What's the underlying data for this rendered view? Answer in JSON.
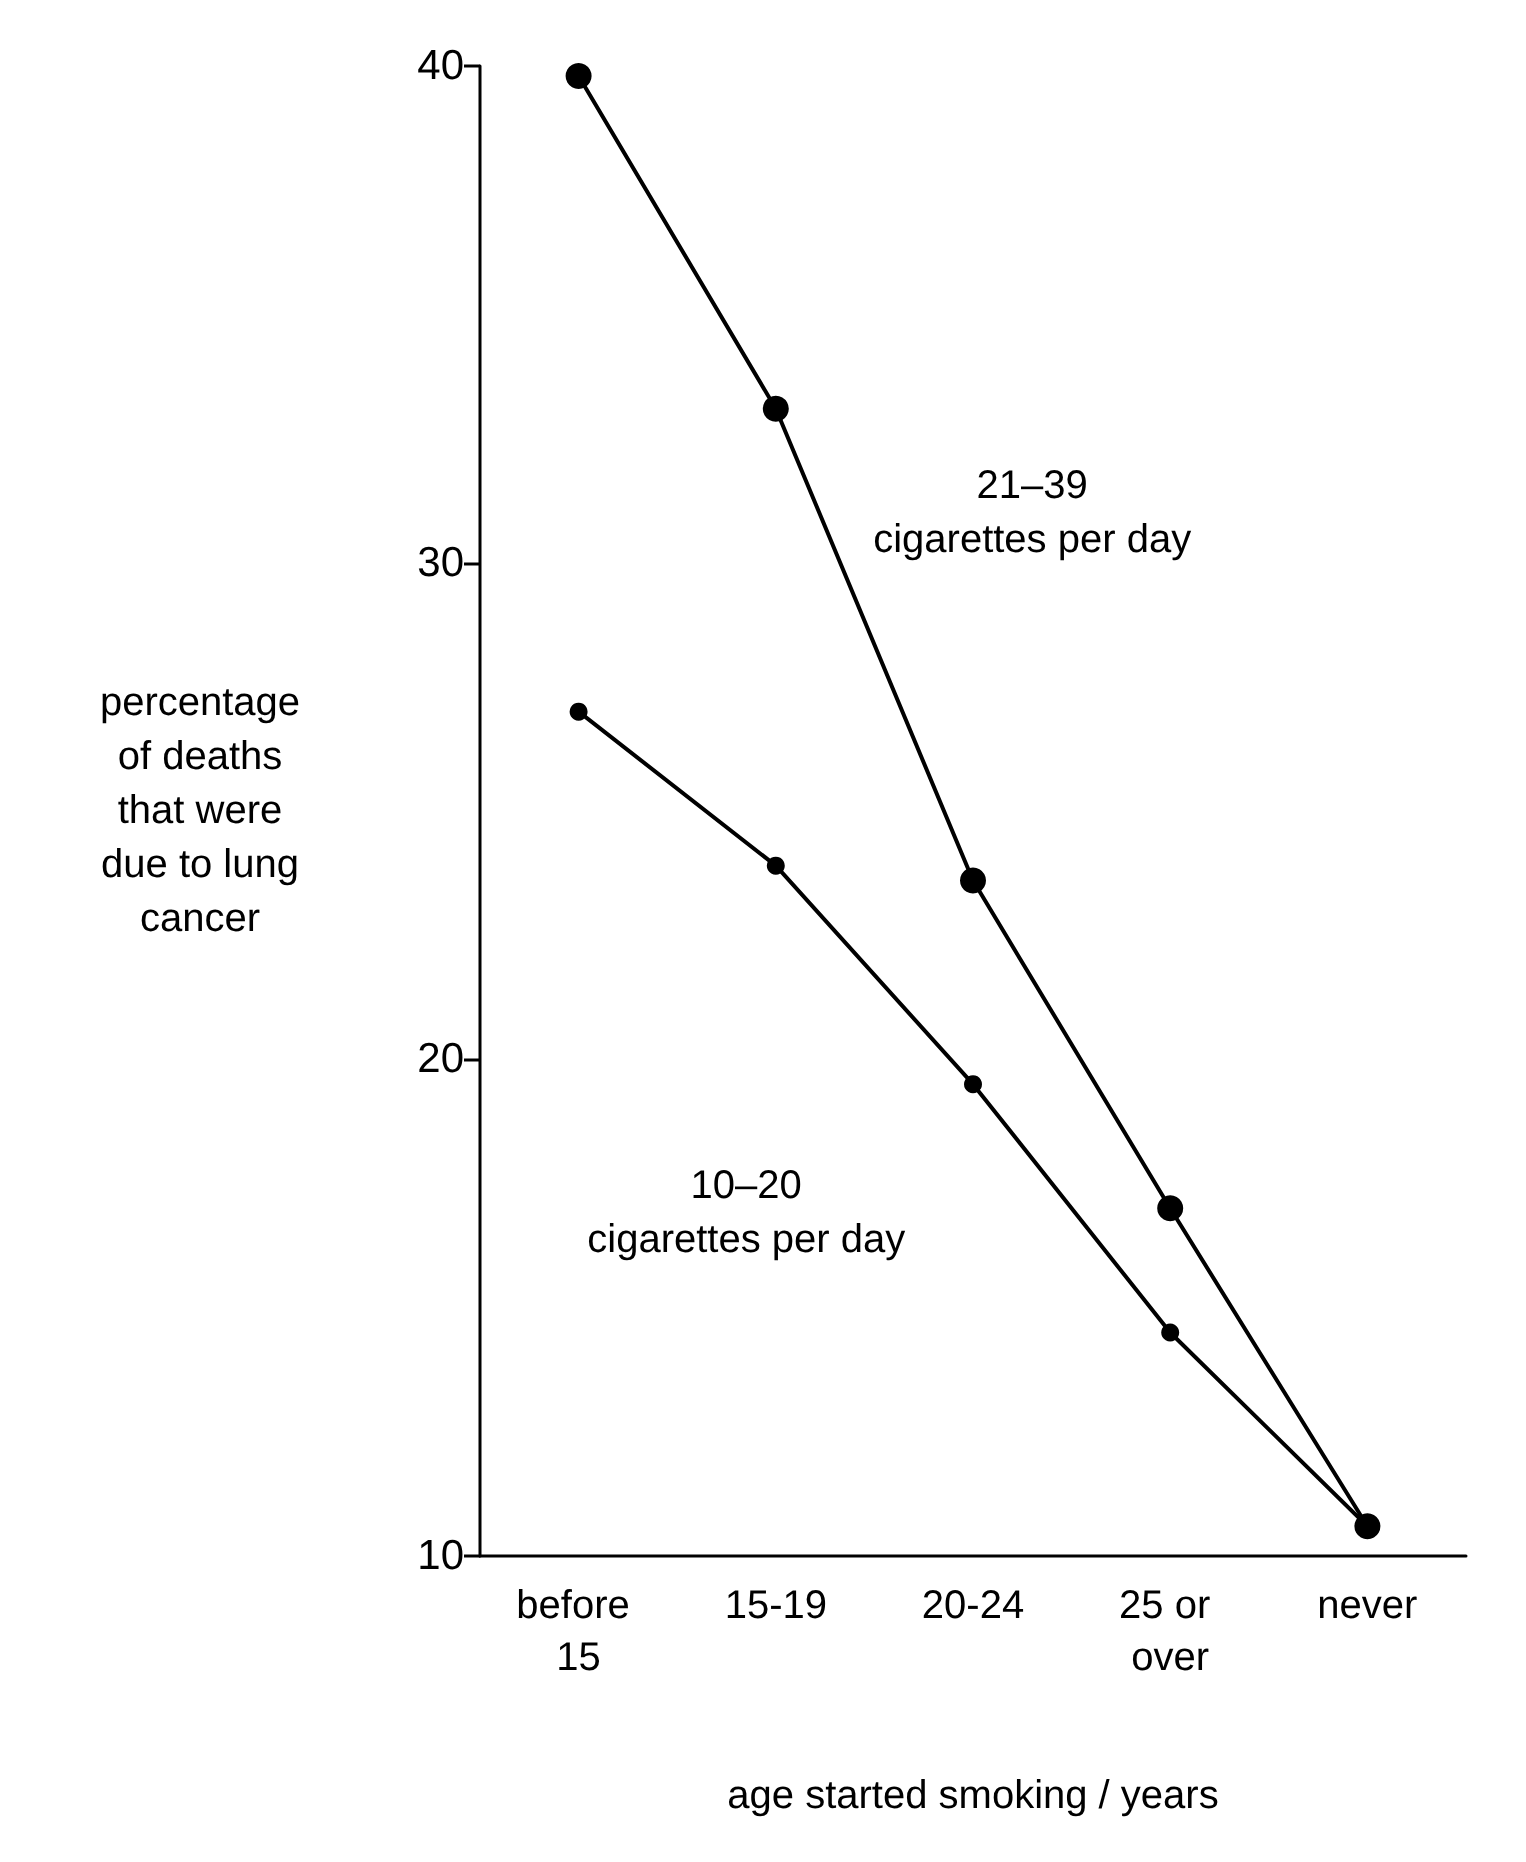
{
  "chart_data": {
    "type": "line",
    "xlabel": "age started smoking / years",
    "ylabel": "percentage of deaths that were due to lung cancer",
    "categories": [
      "before 15",
      "15-19",
      "20-24",
      "25 or over",
      "never"
    ],
    "series": [
      {
        "name": "21–39 cigarettes per day",
        "color": "#000000",
        "values": [
          39.8,
          33.1,
          23.6,
          17.0,
          10.6
        ]
      },
      {
        "name": "10–20 cigarettes per day",
        "color": "#000000",
        "values": [
          27.0,
          23.9,
          19.5,
          14.5,
          10.6
        ]
      }
    ],
    "ylim": [
      10,
      40
    ],
    "yticks": [
      10,
      20,
      30,
      40
    ],
    "grid": false,
    "legend": false,
    "marker": "circle",
    "line_style": "solid"
  }
}
